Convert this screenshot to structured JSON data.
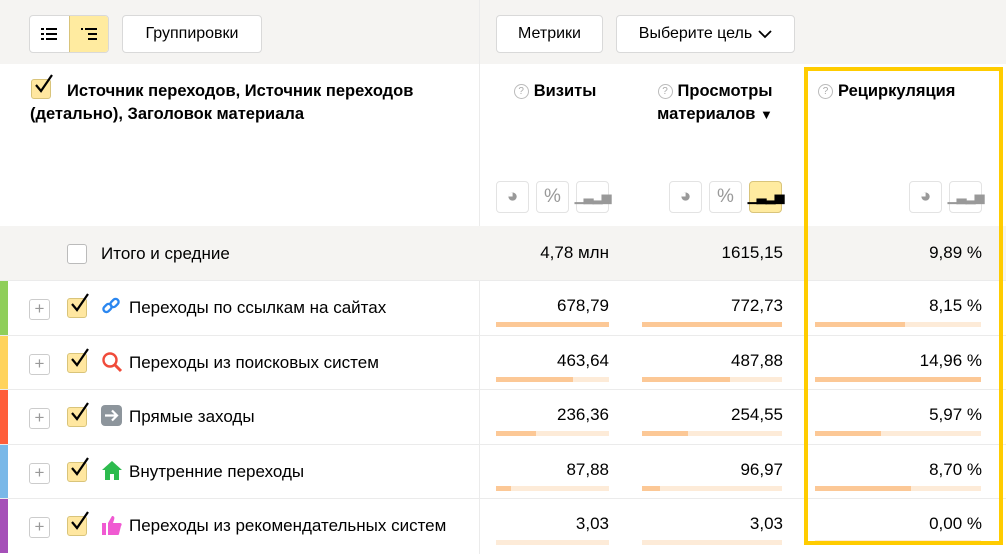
{
  "toolbar": {
    "groupings_label": "Группировки",
    "metrics_label": "Метрики",
    "goal_label": "Выберите цель",
    "view_modes": [
      "list-icon",
      "tree-icon"
    ],
    "active_view": "tree"
  },
  "header": {
    "dimensions_title": "Источник переходов, Источник переходов (детально), Заголовок материала",
    "columns": [
      {
        "title": "Визиты",
        "sort": ""
      },
      {
        "title": "Просмотры материалов",
        "sort": "▼"
      },
      {
        "title": "Рециркуляция",
        "sort": ""
      }
    ]
  },
  "totals": {
    "label": "Итого и средние",
    "visits": "4,78 млн",
    "views": "1615,15",
    "recirculation": "9,89 %"
  },
  "rows": [
    {
      "label": "Переходы по ссылкам на сайтах",
      "icon": "link-icon",
      "color": "#8fce5a",
      "visits": "678,79",
      "views": "772,73",
      "recirculation": "8,15 %",
      "visits_fill": 1,
      "views_fill": 1,
      "recirculation_fill": 0.54
    },
    {
      "label": "Переходы из поисковых систем",
      "icon": "search-icon",
      "color": "#ffd35c",
      "visits": "463,64",
      "views": "487,88",
      "recirculation": "14,96 %",
      "visits_fill": 0.68,
      "views_fill": 0.63,
      "recirculation_fill": 1
    },
    {
      "label": "Прямые заходы",
      "icon": "arrow-right-icon",
      "color": "#ff5e3a",
      "visits": "236,36",
      "views": "254,55",
      "recirculation": "5,97 %",
      "visits_fill": 0.35,
      "views_fill": 0.33,
      "recirculation_fill": 0.4
    },
    {
      "label": "Внутренние переходы",
      "icon": "home-icon",
      "color": "#7ab8e8",
      "visits": "87,88",
      "views": "96,97",
      "recirculation": "8,70 %",
      "visits_fill": 0.13,
      "views_fill": 0.13,
      "recirculation_fill": 0.58
    },
    {
      "label": "Переходы из рекомендательных систем",
      "icon": "thumbs-up-icon",
      "color": "#a550b8",
      "visits": "3,03",
      "views": "3,03",
      "recirculation": "0,00 %",
      "visits_fill": 0,
      "views_fill": 0,
      "recirculation_fill": 0
    }
  ],
  "colors": {
    "highlight": "#ffcc00",
    "bar": "#fcc896",
    "bar_track": "#fdebd8",
    "active": "#ffeba0"
  }
}
